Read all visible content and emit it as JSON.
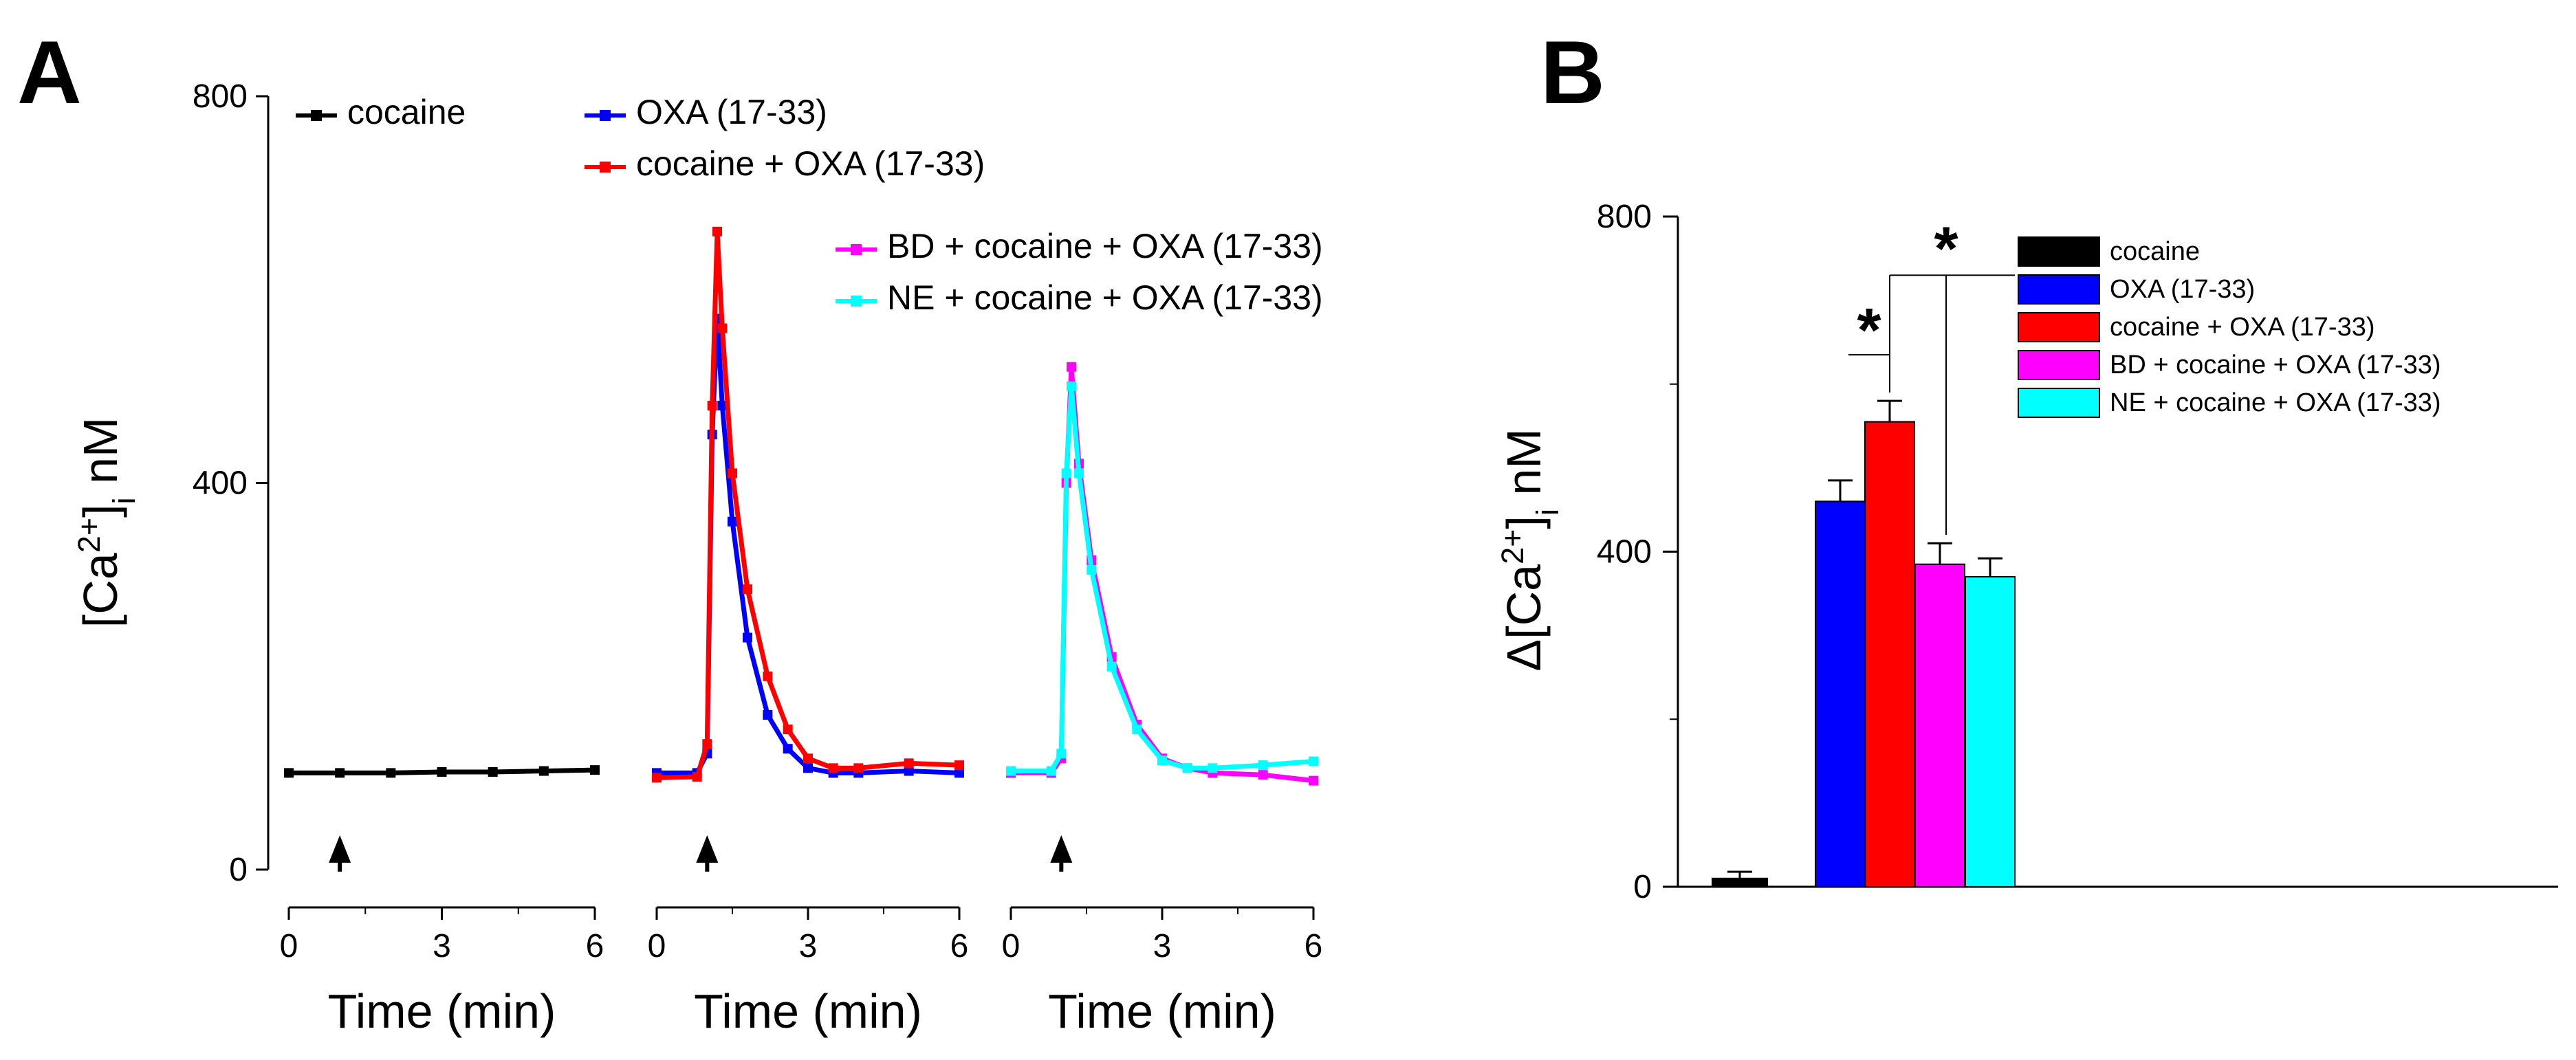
{
  "panel_a_label": "A",
  "panel_b_label": "B",
  "significance_marker": "*",
  "chart_data": [
    {
      "id": "A",
      "type": "line",
      "ylabel": "[Ca2+]i nM",
      "xlabel": "Time (min)",
      "ylim": [
        0,
        800
      ],
      "yticks": [
        "0",
        "400",
        "800"
      ],
      "xlim": [
        0,
        6
      ],
      "xticks": [
        "0",
        "3",
        "6"
      ],
      "stimulus_time": 1,
      "legend": [
        {
          "label": "cocaine",
          "color": "#000000"
        },
        {
          "label": "OXA (17-33)",
          "color": "#0000ff"
        },
        {
          "label": "cocaine + OXA (17-33)",
          "color": "#ff0000"
        },
        {
          "label": "BD + cocaine + OXA (17-33)",
          "color": "#ff00ff"
        },
        {
          "label": "NE + cocaine + OXA (17-33)",
          "color": "#00ffff"
        }
      ],
      "subpanels": [
        {
          "series": [
            {
              "name": "cocaine",
              "color": "#000000",
              "x": [
                0,
                1,
                2,
                3,
                4,
                5,
                6
              ],
              "y": [
                100,
                100,
                100,
                101,
                101,
                102,
                103
              ]
            }
          ]
        },
        {
          "series": [
            {
              "name": "OXA (17-33)",
              "color": "#0000ff",
              "x": [
                0,
                0.8,
                1.0,
                1.1,
                1.2,
                1.3,
                1.5,
                1.8,
                2.2,
                2.6,
                3.0,
                3.5,
                4.0,
                5.0,
                6.0
              ],
              "y": [
                100,
                100,
                120,
                450,
                570,
                480,
                360,
                240,
                160,
                125,
                105,
                100,
                100,
                102,
                100
              ]
            },
            {
              "name": "cocaine + OXA (17-33)",
              "color": "#ff0000",
              "x": [
                0,
                0.8,
                1.0,
                1.1,
                1.2,
                1.3,
                1.5,
                1.8,
                2.2,
                2.6,
                3.0,
                3.5,
                4.0,
                5.0,
                6.0
              ],
              "y": [
                95,
                96,
                130,
                480,
                660,
                560,
                410,
                290,
                200,
                145,
                115,
                105,
                105,
                110,
                108
              ]
            }
          ]
        },
        {
          "series": [
            {
              "name": "BD + cocaine + OXA (17-33)",
              "color": "#ff00ff",
              "x": [
                0,
                0.8,
                1.0,
                1.1,
                1.2,
                1.35,
                1.6,
                2.0,
                2.5,
                3.0,
                3.5,
                4.0,
                5.0,
                6.0
              ],
              "y": [
                100,
                100,
                115,
                400,
                520,
                420,
                320,
                220,
                150,
                115,
                105,
                100,
                98,
                92
              ]
            },
            {
              "name": "NE + cocaine + OXA (17-33)",
              "color": "#00ffff",
              "x": [
                0,
                0.8,
                1.0,
                1.1,
                1.2,
                1.35,
                1.6,
                2.0,
                2.5,
                3.0,
                3.5,
                4.0,
                5.0,
                6.0
              ],
              "y": [
                102,
                102,
                120,
                410,
                500,
                410,
                310,
                210,
                145,
                113,
                105,
                105,
                108,
                112
              ]
            }
          ]
        }
      ]
    },
    {
      "id": "B",
      "type": "bar",
      "ylabel": "Δ[Ca2+]i nM",
      "ylim": [
        0,
        800
      ],
      "yticks": [
        "0",
        "400",
        "800"
      ],
      "categories": [
        "cocaine",
        "OXA (17-33)",
        "cocaine + OXA (17-33)",
        "BD + cocaine + OXA (17-33)",
        "NE + cocaine + OXA (17-33)"
      ],
      "values": [
        10,
        460,
        555,
        385,
        370
      ],
      "errors": [
        8,
        25,
        25,
        25,
        22
      ],
      "colors": [
        "#000000",
        "#0000ff",
        "#ff0000",
        "#ff00ff",
        "#00ffff"
      ],
      "legend": [
        {
          "label": "cocaine",
          "color": "#000000"
        },
        {
          "label": "OXA (17-33)",
          "color": "#0000ff"
        },
        {
          "label": "cocaine + OXA (17-33)",
          "color": "#ff0000"
        },
        {
          "label": "BD + cocaine + OXA (17-33)",
          "color": "#ff00ff"
        },
        {
          "label": "NE + cocaine + OXA (17-33)",
          "color": "#00ffff"
        }
      ],
      "annotations": [
        {
          "text": "*",
          "between": [
            1,
            2
          ]
        },
        {
          "text": "*",
          "between": [
            2,
            3
          ]
        }
      ]
    }
  ]
}
